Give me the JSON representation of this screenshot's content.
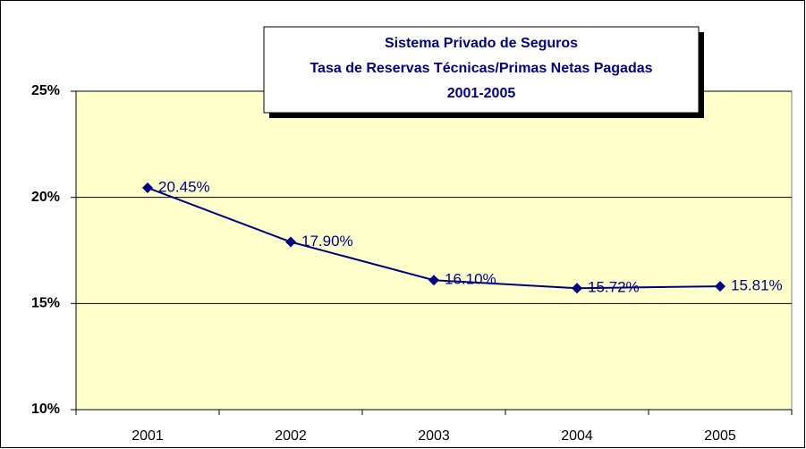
{
  "chart_data": {
    "type": "line",
    "title": [
      "Sistema Privado de Seguros",
      "Tasa de Reservas Técnicas/Primas Netas Pagadas",
      "2001-2005"
    ],
    "categories": [
      "2001",
      "2002",
      "2003",
      "2004",
      "2005"
    ],
    "series": [
      {
        "name": null,
        "color": "#000080",
        "values": [
          20.45,
          17.9,
          16.1,
          15.72,
          15.81
        ],
        "value_labels": [
          "20.45%",
          "17.90%",
          "16.10%",
          "15.72%",
          "15.81%"
        ]
      }
    ],
    "ylim": [
      10,
      25
    ],
    "yticks": [
      {
        "value": 10,
        "label": "10%"
      },
      {
        "value": 15,
        "label": "15%"
      },
      {
        "value": 20,
        "label": "20%"
      },
      {
        "value": 25,
        "label": "25%"
      }
    ],
    "grid": true,
    "plot_background": "#ffffcc"
  }
}
